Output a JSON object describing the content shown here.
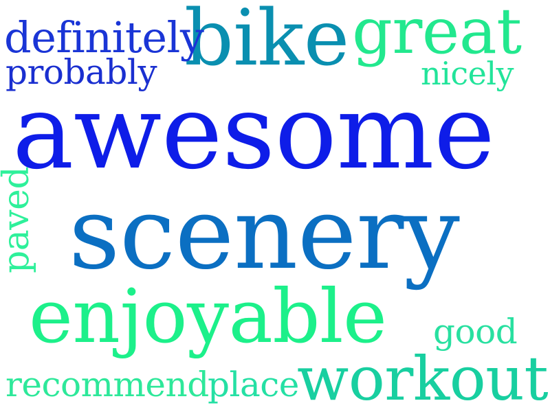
{
  "words": {
    "awesome": {
      "text": "awesome",
      "color": "#0e1de8"
    },
    "scenery": {
      "text": "scenery",
      "color": "#0b6fc2"
    },
    "bike": {
      "text": "bike",
      "color": "#0a8fb0"
    },
    "great": {
      "text": "great",
      "color": "#22e88e"
    },
    "definitely": {
      "text": "definitely",
      "color": "#1a35d6"
    },
    "probably": {
      "text": "probably",
      "color": "#1a2fd0"
    },
    "nicely": {
      "text": "nicely",
      "color": "#22e49a"
    },
    "enjoyable": {
      "text": "enjoyable",
      "color": "#1cf08a"
    },
    "good": {
      "text": "good",
      "color": "#28e0a0"
    },
    "recommend": {
      "text": "recommend",
      "color": "#2ee89a"
    },
    "place": {
      "text": "place",
      "color": "#25e0a4"
    },
    "workout": {
      "text": "workout",
      "color": "#18cfa0"
    },
    "paved": {
      "text": "paved",
      "color": "#2ef09a"
    }
  }
}
